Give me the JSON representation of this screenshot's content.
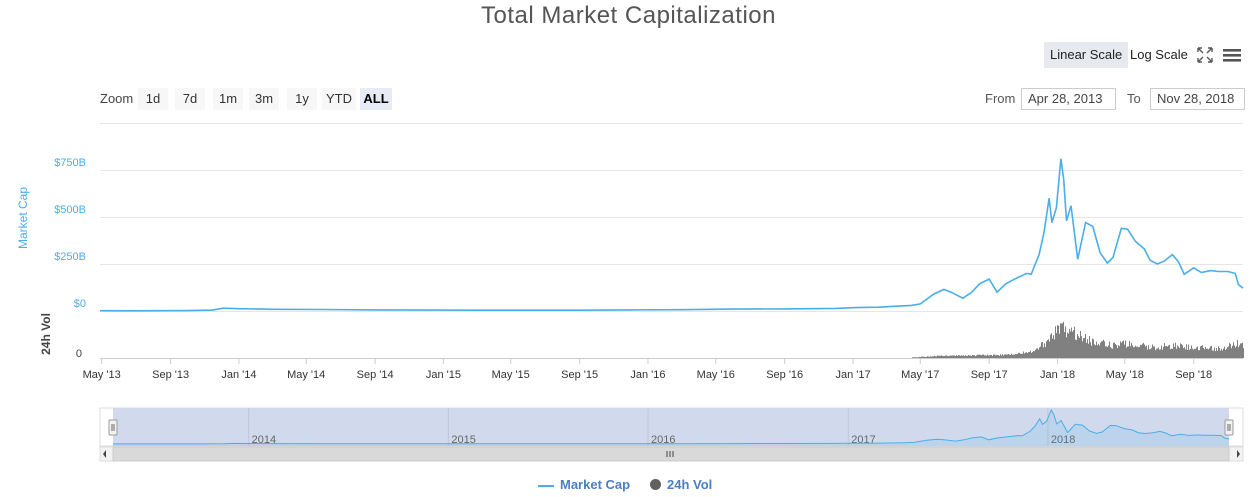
{
  "title": "Total Market Capitalization",
  "scale_buttons": {
    "linear": "Linear Scale",
    "log": "Log Scale"
  },
  "zoom": {
    "label": "Zoom",
    "buttons": [
      "1d",
      "7d",
      "1m",
      "3m",
      "1y",
      "YTD",
      "ALL"
    ],
    "active": "ALL"
  },
  "range": {
    "from_label": "From",
    "from_value": "Apr 28, 2013",
    "to_label": "To",
    "to_value": "Nov 28, 2018"
  },
  "colors": {
    "market_cap": "#4aaee8",
    "volume": "#606060",
    "navigator_fill": "#ccd6eb"
  },
  "chart_data": {
    "type": "line",
    "title": "Total Market Capitalization",
    "ylabel": "Market Cap",
    "y2label": "24h Vol",
    "y_ticks": [
      "$0",
      "$250B",
      "$500B",
      "$750B"
    ],
    "y2_ticks": [
      "0"
    ],
    "ylim": [
      0,
      850
    ],
    "x_tick_labels": [
      "May '13",
      "Sep '13",
      "Jan '14",
      "May '14",
      "Sep '14",
      "Jan '15",
      "May '15",
      "Sep '15",
      "Jan '16",
      "May '16",
      "Sep '16",
      "Jan '17",
      "May '17",
      "Sep '17",
      "Jan '18",
      "May '18",
      "Sep '18"
    ],
    "navigator_labels": [
      "2014",
      "2015",
      "2016",
      "2017",
      "2018"
    ],
    "legend": [
      "Market Cap",
      "24h Vol"
    ],
    "series": [
      {
        "name": "Market Cap",
        "unit": "B USD",
        "points": [
          [
            "2013-04-28",
            1.5
          ],
          [
            "2013-07-01",
            1.2
          ],
          [
            "2013-10-01",
            2.0
          ],
          [
            "2013-11-15",
            5
          ],
          [
            "2013-12-04",
            15
          ],
          [
            "2014-01-01",
            12
          ],
          [
            "2014-03-01",
            9
          ],
          [
            "2014-06-01",
            8
          ],
          [
            "2014-09-01",
            6
          ],
          [
            "2014-12-01",
            5
          ],
          [
            "2015-03-01",
            4
          ],
          [
            "2015-06-01",
            4
          ],
          [
            "2015-09-01",
            4
          ],
          [
            "2015-12-01",
            6
          ],
          [
            "2016-03-01",
            7
          ],
          [
            "2016-06-01",
            10
          ],
          [
            "2016-09-01",
            11
          ],
          [
            "2016-12-01",
            14
          ],
          [
            "2017-01-05",
            18
          ],
          [
            "2017-02-15",
            20
          ],
          [
            "2017-03-15",
            25
          ],
          [
            "2017-04-15",
            30
          ],
          [
            "2017-05-01",
            38
          ],
          [
            "2017-05-25",
            90
          ],
          [
            "2017-06-12",
            115
          ],
          [
            "2017-06-25",
            100
          ],
          [
            "2017-07-16",
            68
          ],
          [
            "2017-08-01",
            100
          ],
          [
            "2017-08-15",
            145
          ],
          [
            "2017-09-01",
            170
          ],
          [
            "2017-09-15",
            100
          ],
          [
            "2017-10-01",
            145
          ],
          [
            "2017-10-20",
            175
          ],
          [
            "2017-11-07",
            200
          ],
          [
            "2017-11-15",
            195
          ],
          [
            "2017-11-29",
            300
          ],
          [
            "2017-12-08",
            420
          ],
          [
            "2017-12-17",
            600
          ],
          [
            "2017-12-22",
            470
          ],
          [
            "2017-12-30",
            550
          ],
          [
            "2018-01-07",
            810
          ],
          [
            "2018-01-12",
            700
          ],
          [
            "2018-01-17",
            480
          ],
          [
            "2018-01-25",
            560
          ],
          [
            "2018-02-06",
            275
          ],
          [
            "2018-02-20",
            470
          ],
          [
            "2018-03-05",
            450
          ],
          [
            "2018-03-18",
            310
          ],
          [
            "2018-03-31",
            255
          ],
          [
            "2018-04-10",
            285
          ],
          [
            "2018-04-25",
            440
          ],
          [
            "2018-05-06",
            435
          ],
          [
            "2018-05-20",
            370
          ],
          [
            "2018-06-05",
            330
          ],
          [
            "2018-06-15",
            270
          ],
          [
            "2018-06-28",
            250
          ],
          [
            "2018-07-10",
            265
          ],
          [
            "2018-07-25",
            300
          ],
          [
            "2018-08-05",
            260
          ],
          [
            "2018-08-15",
            195
          ],
          [
            "2018-09-01",
            230
          ],
          [
            "2018-09-15",
            205
          ],
          [
            "2018-10-01",
            215
          ],
          [
            "2018-10-15",
            210
          ],
          [
            "2018-11-01",
            210
          ],
          [
            "2018-11-14",
            200
          ],
          [
            "2018-11-20",
            140
          ],
          [
            "2018-11-28",
            122
          ]
        ]
      },
      {
        "name": "24h Vol",
        "unit": "B USD",
        "points": [
          [
            "2017-04-15",
            0.5
          ],
          [
            "2017-06-01",
            2
          ],
          [
            "2017-08-01",
            2.5
          ],
          [
            "2017-10-01",
            3
          ],
          [
            "2017-11-15",
            6
          ],
          [
            "2017-12-10",
            15
          ],
          [
            "2017-12-22",
            22
          ],
          [
            "2018-01-07",
            28
          ],
          [
            "2018-02-06",
            24
          ],
          [
            "2018-03-01",
            16
          ],
          [
            "2018-04-15",
            12
          ],
          [
            "2018-05-10",
            14
          ],
          [
            "2018-06-15",
            10
          ],
          [
            "2018-07-20",
            12
          ],
          [
            "2018-09-01",
            10
          ],
          [
            "2018-10-15",
            9
          ],
          [
            "2018-11-20",
            14
          ],
          [
            "2018-11-28",
            12
          ]
        ]
      }
    ]
  }
}
